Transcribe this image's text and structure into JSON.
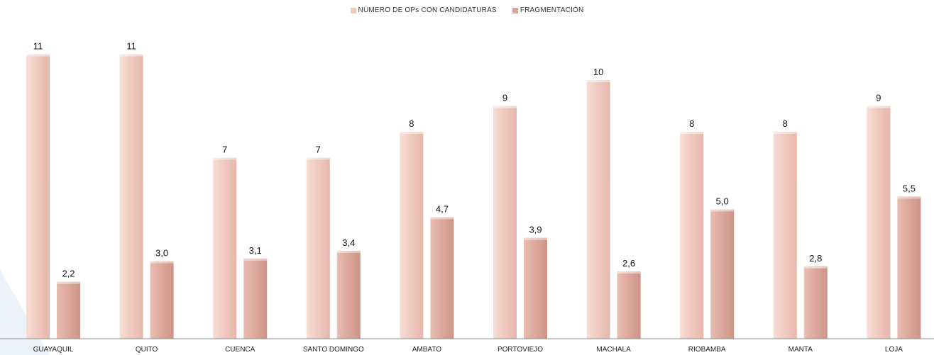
{
  "chart_data": {
    "type": "bar",
    "title": "",
    "xlabel": "",
    "ylabel": "",
    "ylim": [
      0,
      11.6
    ],
    "grid": false,
    "legend_position": "top-center",
    "categories": [
      "GUAYAQUIL",
      "QUITO",
      "CUENCA",
      "SANTO DOMINGO",
      "AMBATO",
      "PORTOVIEJO",
      "MACHALA",
      "RIOBAMBA",
      "MANTA",
      "LOJA"
    ],
    "series": [
      {
        "name": "NÚMERO DE OPs CON CANDIDATURAS",
        "values": [
          11,
          11,
          7,
          7,
          8,
          9,
          10,
          8,
          8,
          9
        ],
        "labels": [
          "11",
          "11",
          "7",
          "7",
          "8",
          "9",
          "10",
          "8",
          "8",
          "9"
        ],
        "color": "#efc9bf"
      },
      {
        "name": "FRAGMENTACIÓN",
        "values": [
          2.2,
          3.0,
          3.1,
          3.4,
          4.7,
          3.9,
          2.6,
          5.0,
          2.8,
          5.5
        ],
        "labels": [
          "2,2",
          "3,0",
          "3,1",
          "3,4",
          "4,7",
          "3,9",
          "2,6",
          "5,0",
          "2,8",
          "5,5"
        ],
        "color": "#dba89b"
      }
    ]
  }
}
